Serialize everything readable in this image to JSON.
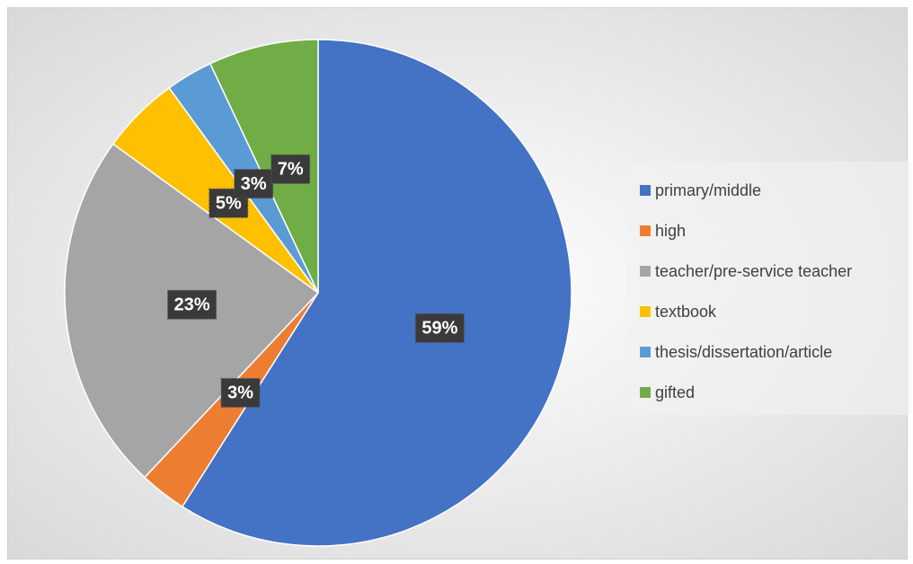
{
  "chart_data": {
    "type": "pie",
    "categories": [
      "primary/middle",
      "high",
      "teacher/pre-service teacher",
      "textbook",
      "thesis/dissertation/article",
      "gifted"
    ],
    "values": [
      59,
      3,
      23,
      5,
      3,
      7
    ],
    "value_labels": [
      "59%",
      "3%",
      "23%",
      "5%",
      "3%",
      "7%"
    ],
    "colors": [
      "#4472c4",
      "#ed7d31",
      "#a5a5a5",
      "#ffc000",
      "#5b9bd5",
      "#70ad47"
    ],
    "legend": "right"
  }
}
